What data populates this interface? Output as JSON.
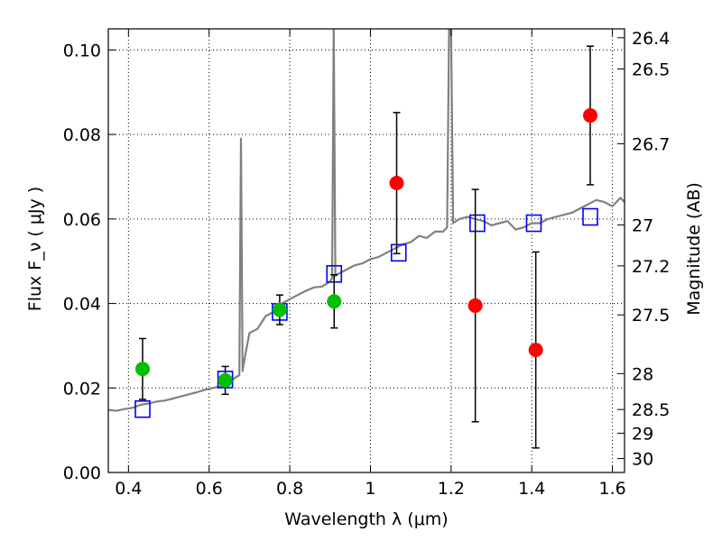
{
  "chart_data": {
    "type": "scatter",
    "xlabel": "Wavelength  λ (μm)",
    "ylabel": "Flux  F_ν  ( μJy )",
    "ylabel_right": "Magnitude (AB)",
    "xlim": [
      0.35,
      1.63
    ],
    "ylim": [
      0.0,
      0.105
    ],
    "grid": true,
    "x_ticks": [
      0.4,
      0.6,
      0.8,
      1.0,
      1.2,
      1.4,
      1.6
    ],
    "x_tick_labels": [
      "0.4",
      "0.6",
      "0.8",
      "1",
      "1.2",
      "1.4",
      "1.6"
    ],
    "y_ticks": [
      0.0,
      0.02,
      0.04,
      0.06,
      0.08,
      0.1
    ],
    "y_tick_labels": [
      "0.00",
      "0.02",
      "0.04",
      "0.06",
      "0.08",
      "0.10"
    ],
    "right_ticks": [
      {
        "flux": 0.1029,
        "label": "26.4"
      },
      {
        "flux": 0.0955,
        "label": "26.5"
      },
      {
        "flux": 0.0778,
        "label": "26.7"
      },
      {
        "flux": 0.0586,
        "label": "27"
      },
      {
        "flux": 0.0489,
        "label": "27.2"
      },
      {
        "flux": 0.0373,
        "label": "27.5"
      },
      {
        "flux": 0.0234,
        "label": "28"
      },
      {
        "flux": 0.0149,
        "label": "28.5"
      },
      {
        "flux": 0.0093,
        "label": "29"
      },
      {
        "flux": 0.0033,
        "label": "30"
      }
    ],
    "series": [
      {
        "kind": "model-spectrum",
        "color": "#808080",
        "x": [
          0.35,
          0.37,
          0.39,
          0.41,
          0.43,
          0.45,
          0.47,
          0.49,
          0.51,
          0.53,
          0.55,
          0.57,
          0.59,
          0.61,
          0.63,
          0.65,
          0.665,
          0.675,
          0.679,
          0.683,
          0.69,
          0.7,
          0.72,
          0.74,
          0.76,
          0.78,
          0.8,
          0.82,
          0.84,
          0.86,
          0.88,
          0.9,
          0.905,
          0.909,
          0.913,
          0.92,
          0.94,
          0.96,
          0.98,
          1.0,
          1.02,
          1.04,
          1.06,
          1.08,
          1.1,
          1.12,
          1.14,
          1.16,
          1.18,
          1.19,
          1.195,
          1.2,
          1.205,
          1.22,
          1.24,
          1.26,
          1.28,
          1.3,
          1.32,
          1.34,
          1.36,
          1.38,
          1.4,
          1.42,
          1.44,
          1.46,
          1.48,
          1.5,
          1.52,
          1.54,
          1.56,
          1.58,
          1.6,
          1.62,
          1.63
        ],
        "y": [
          0.0148,
          0.0146,
          0.015,
          0.0153,
          0.016,
          0.0163,
          0.0168,
          0.017,
          0.0175,
          0.018,
          0.0185,
          0.019,
          0.0196,
          0.02,
          0.0205,
          0.0212,
          0.0225,
          0.023,
          0.079,
          0.024,
          0.028,
          0.033,
          0.034,
          0.037,
          0.038,
          0.04,
          0.041,
          0.042,
          0.043,
          0.0438,
          0.044,
          0.0452,
          0.046,
          0.105,
          0.0465,
          0.047,
          0.048,
          0.049,
          0.0495,
          0.0505,
          0.051,
          0.052,
          0.053,
          0.054,
          0.0545,
          0.056,
          0.0555,
          0.057,
          0.057,
          0.058,
          0.105,
          0.105,
          0.059,
          0.06,
          0.0605,
          0.06,
          0.0595,
          0.0585,
          0.059,
          0.0595,
          0.0575,
          0.058,
          0.059,
          0.059,
          0.06,
          0.0605,
          0.061,
          0.0615,
          0.0625,
          0.0635,
          0.0645,
          0.064,
          0.063,
          0.065,
          0.064
        ]
      },
      {
        "kind": "model-photometry",
        "marker": "open-square",
        "color": "#0000ff",
        "x": [
          0.435,
          0.64,
          0.775,
          0.91,
          1.07,
          1.265,
          1.405,
          1.545
        ],
        "y": [
          0.015,
          0.022,
          0.038,
          0.047,
          0.052,
          0.059,
          0.059,
          0.0605
        ]
      },
      {
        "kind": "detections",
        "marker": "filled-circle",
        "color": "#00c000",
        "x": [
          0.435,
          0.64,
          0.775,
          0.91
        ],
        "y": [
          0.0245,
          0.0218,
          0.0385,
          0.0405
        ],
        "yerr": [
          0.0072,
          0.0033,
          0.0035,
          0.0063
        ]
      },
      {
        "kind": "upper-limits",
        "marker": "filled-circle",
        "color": "#ff0000",
        "x": [
          1.065,
          1.26,
          1.41,
          1.545
        ],
        "y": [
          0.0685,
          0.0395,
          0.029,
          0.0845
        ],
        "yerr": [
          0.0167,
          0.0275,
          0.0232,
          0.0164
        ]
      }
    ]
  }
}
